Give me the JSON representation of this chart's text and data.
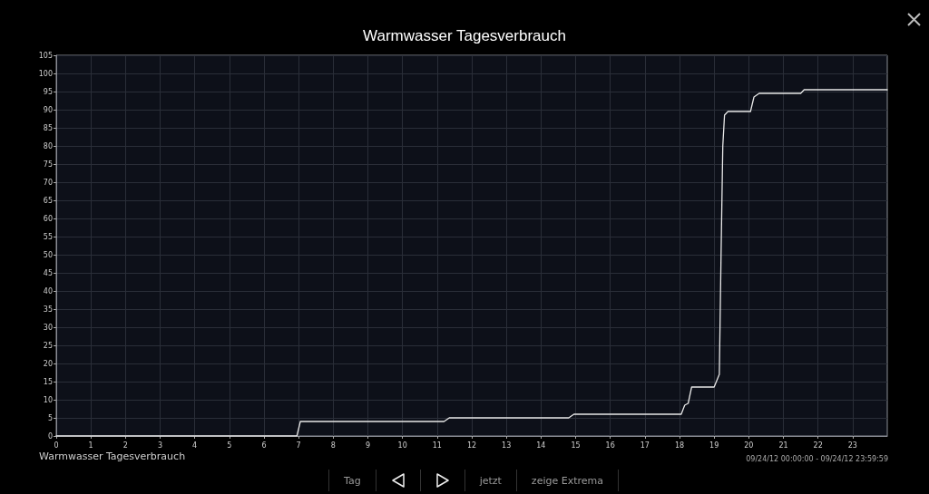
{
  "chart_data": {
    "type": "line",
    "title": "Warmwasser Tagesverbrauch",
    "xlabel": "Warmwasser Tagesverbrauch",
    "annotations": [
      "09/24/12 00:00:00 - 09/24/12 23:59:59",
      "Tag",
      "jetzt",
      "zeige Extrema"
    ],
    "xlim": [
      0,
      24
    ],
    "xticks": [
      0,
      1,
      2,
      3,
      4,
      5,
      6,
      7,
      8,
      9,
      10,
      11,
      12,
      13,
      14,
      15,
      16,
      17,
      18,
      19,
      20,
      21,
      22,
      23
    ],
    "ylim": [
      0,
      105
    ],
    "yticks": [
      0,
      5,
      10,
      15,
      20,
      25,
      30,
      35,
      40,
      45,
      50,
      55,
      60,
      65,
      70,
      75,
      80,
      85,
      90,
      95,
      100,
      105
    ],
    "grid": true,
    "marker": "none",
    "line_style": "solid",
    "series": [
      {
        "color": "#e8e8e8",
        "x": [
          0,
          6.95,
          7.05,
          11.2,
          11.35,
          14.8,
          14.95,
          18.05,
          18.15,
          18.25,
          18.35,
          19.0,
          19.15,
          19.2,
          19.25,
          19.3,
          19.4,
          20.05,
          20.15,
          20.3,
          21.5,
          21.6,
          24
        ],
        "values": [
          0,
          0,
          4,
          4,
          5,
          5,
          6,
          6,
          8.5,
          9,
          13.5,
          13.5,
          17,
          50,
          80,
          88.5,
          89.5,
          89.5,
          93.5,
          94.5,
          94.5,
          95.5,
          95.5
        ]
      }
    ]
  }
}
